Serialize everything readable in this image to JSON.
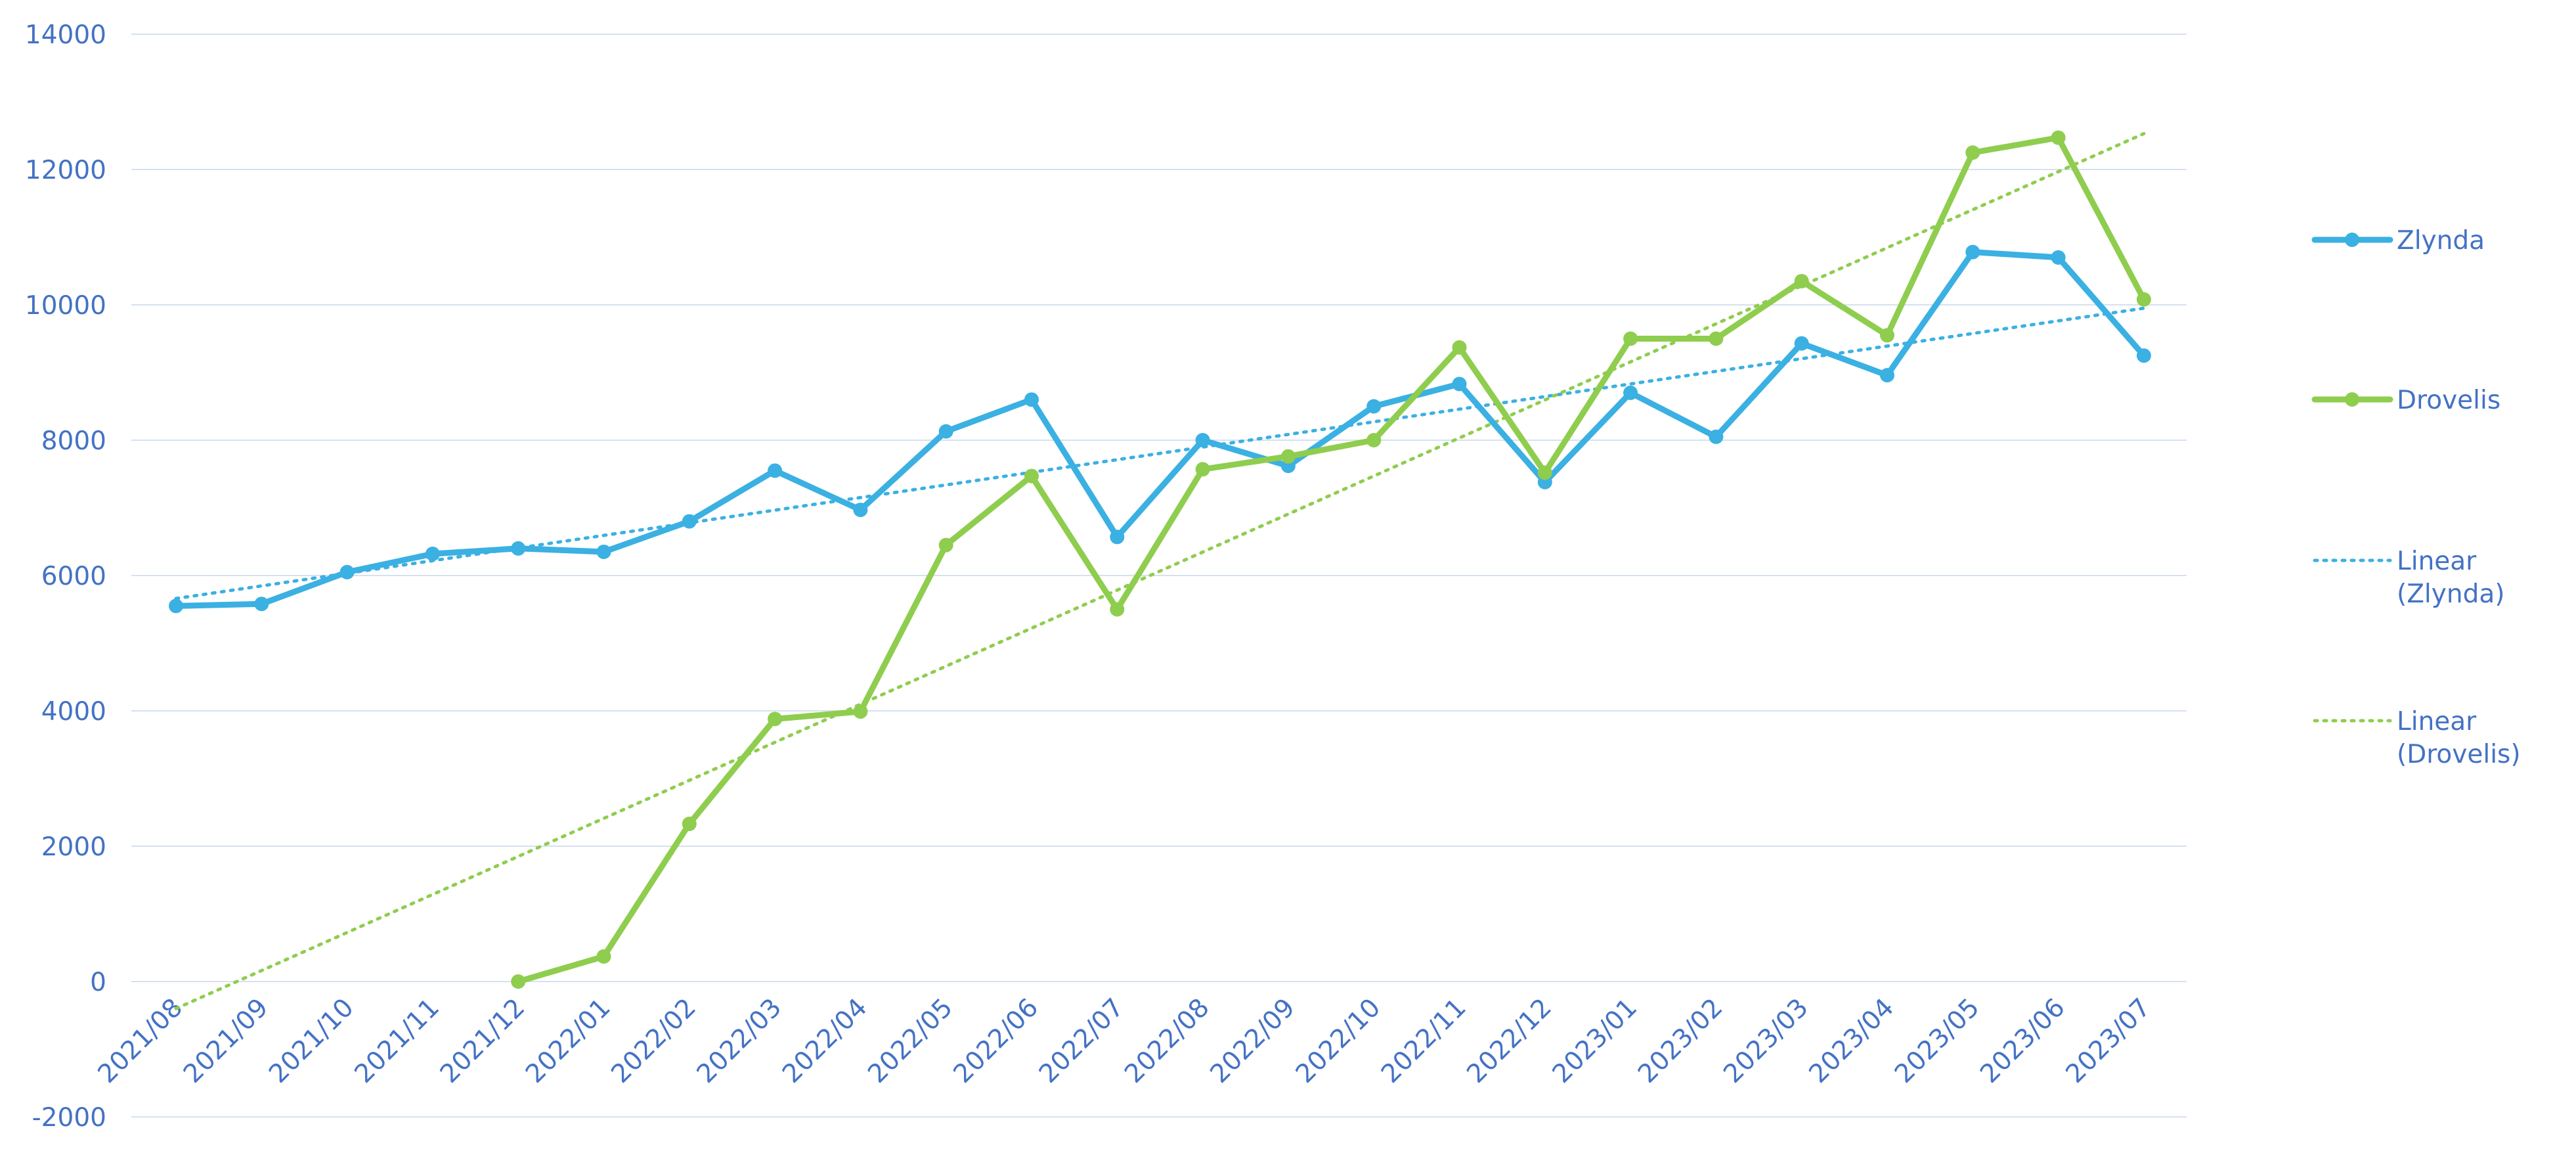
{
  "chart_data": {
    "type": "line",
    "title": "",
    "xlabel": "",
    "ylabel": "",
    "categories": [
      "2021/08",
      "2021/09",
      "2021/10",
      "2021/11",
      "2021/12",
      "2022/01",
      "2022/02",
      "2022/03",
      "2022/04",
      "2022/05",
      "2022/06",
      "2022/07",
      "2022/08",
      "2022/09",
      "2022/10",
      "2022/11",
      "2022/12",
      "2023/01",
      "2023/02",
      "2023/03",
      "2023/04",
      "2023/05",
      "2023/06",
      "2023/07"
    ],
    "ylim": [
      -2000,
      14000
    ],
    "yticks": [
      -2000,
      0,
      2000,
      4000,
      6000,
      8000,
      10000,
      12000,
      14000
    ],
    "grid": true,
    "legend_position": "right",
    "series": [
      {
        "name": "Zlynda",
        "color": "#3bb0e2",
        "values": [
          5550,
          5580,
          6050,
          6320,
          6400,
          6350,
          6800,
          7550,
          6970,
          8130,
          8600,
          6570,
          8000,
          7620,
          8500,
          8830,
          7380,
          8700,
          8050,
          9430,
          8960,
          10780,
          10700,
          9250
        ]
      },
      {
        "name": "Drovelis",
        "color": "#8fcd4e",
        "values": [
          null,
          null,
          null,
          null,
          0,
          370,
          2330,
          3880,
          3990,
          6450,
          7470,
          5500,
          7570,
          7760,
          8000,
          9370,
          7520,
          9500,
          9500,
          10350,
          9550,
          12250,
          12470,
          10080
        ]
      }
    ],
    "trendlines": [
      {
        "name": "Linear\n(Zlynda)",
        "color": "#3bb0e2",
        "start": 5660,
        "end": 9950
      },
      {
        "name": "Linear\n(Drovelis)",
        "color": "#8fcd4e",
        "start": -400,
        "end": 12530
      }
    ],
    "legend": {
      "items": [
        {
          "label_lines": [
            "Zlynda"
          ],
          "style": "line-marker",
          "color": "#3bb0e2"
        },
        {
          "label_lines": [
            "Drovelis"
          ],
          "style": "line-marker",
          "color": "#8fcd4e"
        },
        {
          "label_lines": [
            "Linear",
            "(Zlynda)"
          ],
          "style": "dotted",
          "color": "#3bb0e2"
        },
        {
          "label_lines": [
            "Linear",
            "(Drovelis)"
          ],
          "style": "dotted",
          "color": "#8fcd4e"
        }
      ]
    },
    "gridline_color": "#d6e1f0"
  }
}
